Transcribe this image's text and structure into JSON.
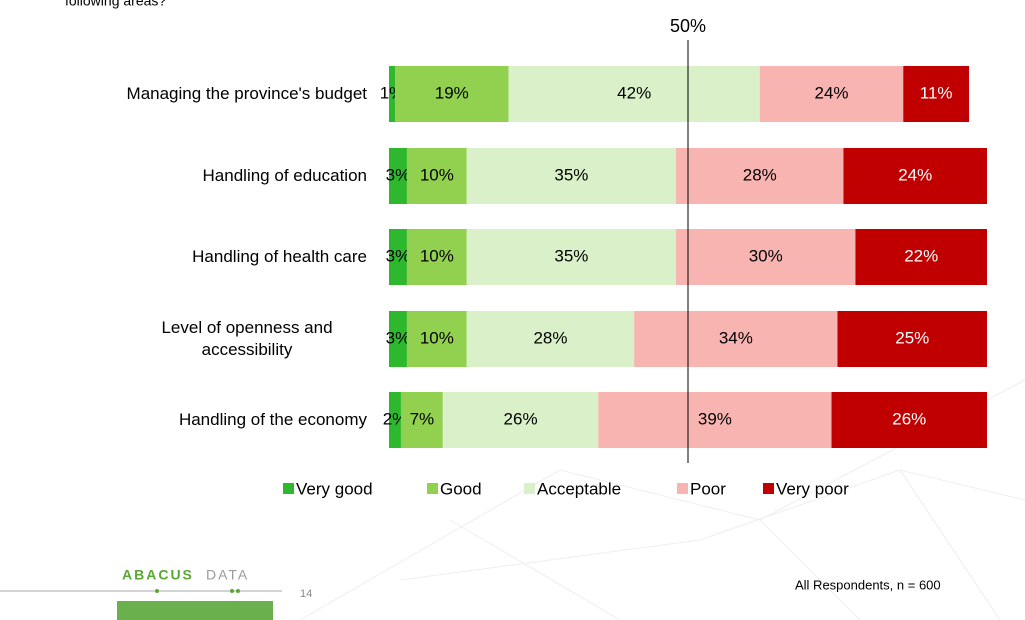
{
  "chart_data": {
    "type": "stacked_bar_horizontal",
    "title": "following areas?",
    "categories": [
      "Managing the province's budget",
      "Handling of education",
      "Handling of health care",
      "Level of openness and accessibility",
      "Handling of the economy"
    ],
    "series": [
      {
        "name": "Very good",
        "color": "#2eb82e",
        "label_color": "#000000",
        "values": [
          1,
          3,
          3,
          3,
          2
        ],
        "value_labels": [
          "1%",
          "3%",
          "3%",
          "3%",
          "2%"
        ]
      },
      {
        "name": "Good",
        "color": "#92d050",
        "label_color": "#000000",
        "values": [
          19,
          10,
          10,
          10,
          7
        ],
        "value_labels": [
          "19%",
          "10%",
          "10%",
          "10%",
          "7%"
        ]
      },
      {
        "name": "Acceptable",
        "color": "#d9f0c8",
        "label_color": "#000000",
        "values": [
          42,
          35,
          35,
          28,
          26
        ],
        "value_labels": [
          "42%",
          "35%",
          "35%",
          "28%",
          "26%"
        ]
      },
      {
        "name": "Poor",
        "color": "#f8b4b0",
        "label_color": "#000000",
        "values": [
          24,
          28,
          30,
          34,
          39
        ],
        "value_labels": [
          "24%",
          "28%",
          "30%",
          "34%",
          "39%"
        ]
      },
      {
        "name": "Very poor",
        "color": "#c00000",
        "label_color": "#ffffff",
        "values": [
          11,
          24,
          22,
          25,
          26
        ],
        "value_labels": [
          "11%",
          "24%",
          "22%",
          "25%",
          "26%"
        ]
      }
    ],
    "xlim": [
      0,
      100
    ],
    "reference_line": {
      "value": 50,
      "label": "50%"
    },
    "legend": "bottom"
  },
  "footer": {
    "note": "All Respondents, n = 600",
    "page": "14",
    "logo_left": "ABACUS",
    "logo_right": "DATA"
  }
}
